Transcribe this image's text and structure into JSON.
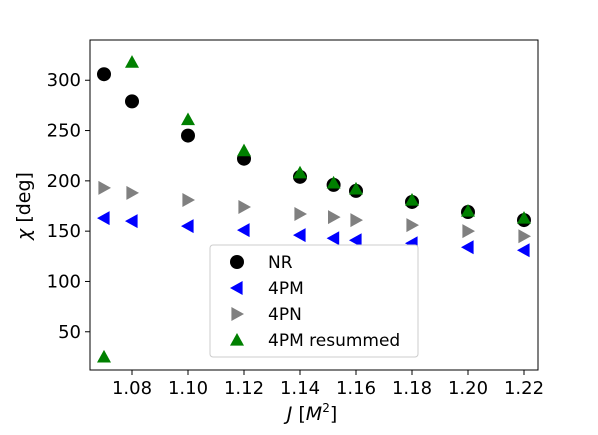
{
  "chart_data": {
    "type": "scatter",
    "xlabel": {
      "symbol": "J",
      "unit_open": "[",
      "unit_base": "M",
      "unit_exp": "2",
      "unit_close": "]"
    },
    "ylabel": {
      "symbol": "χ",
      "unit": "[deg]"
    },
    "xlim": [
      1.065,
      1.225
    ],
    "ylim": [
      12,
      340
    ],
    "xticks": [
      1.08,
      1.1,
      1.12,
      1.14,
      1.16,
      1.18,
      1.2,
      1.22
    ],
    "xtick_labels": [
      "1.08",
      "1.10",
      "1.12",
      "1.14",
      "1.16",
      "1.18",
      "1.20",
      "1.22"
    ],
    "yticks": [
      50,
      100,
      150,
      200,
      250,
      300
    ],
    "ytick_labels": [
      "50",
      "100",
      "150",
      "200",
      "250",
      "300"
    ],
    "grid": false,
    "legend_position": "lower-center",
    "series": [
      {
        "name": "NR",
        "marker": "circle",
        "color": "#000000",
        "points": [
          [
            1.07,
            306
          ],
          [
            1.08,
            279
          ],
          [
            1.1,
            245
          ],
          [
            1.12,
            222
          ],
          [
            1.14,
            204
          ],
          [
            1.152,
            196
          ],
          [
            1.16,
            190
          ],
          [
            1.18,
            179
          ],
          [
            1.2,
            169
          ],
          [
            1.22,
            161
          ]
        ]
      },
      {
        "name": "4PM",
        "marker": "triangle-left",
        "color": "#0000ff",
        "points": [
          [
            1.07,
            163
          ],
          [
            1.08,
            160
          ],
          [
            1.1,
            155
          ],
          [
            1.12,
            151
          ],
          [
            1.14,
            146
          ],
          [
            1.152,
            143
          ],
          [
            1.16,
            141
          ],
          [
            1.18,
            138
          ],
          [
            1.2,
            134
          ],
          [
            1.22,
            131
          ]
        ]
      },
      {
        "name": "4PN",
        "marker": "triangle-right",
        "color": "#808080",
        "points": [
          [
            1.07,
            193
          ],
          [
            1.08,
            188
          ],
          [
            1.1,
            181
          ],
          [
            1.12,
            174
          ],
          [
            1.14,
            167
          ],
          [
            1.152,
            164
          ],
          [
            1.16,
            161
          ],
          [
            1.18,
            156
          ],
          [
            1.2,
            150
          ],
          [
            1.22,
            145
          ]
        ]
      },
      {
        "name": "4PM resummed",
        "marker": "triangle-up",
        "color": "#008000",
        "points": [
          [
            1.07,
            25
          ],
          [
            1.08,
            318
          ],
          [
            1.1,
            261
          ],
          [
            1.12,
            230
          ],
          [
            1.14,
            208
          ],
          [
            1.152,
            198
          ],
          [
            1.16,
            192
          ],
          [
            1.18,
            181
          ],
          [
            1.2,
            170
          ],
          [
            1.22,
            163
          ]
        ]
      }
    ]
  }
}
